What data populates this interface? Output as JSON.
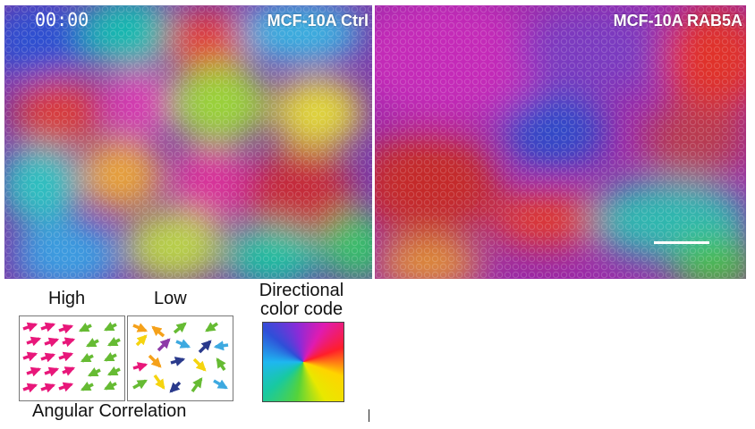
{
  "timestamp": "00:00",
  "panels": {
    "left": {
      "label": "MCF-10A Ctrl"
    },
    "right": {
      "label": "MCF-10A RAB5A"
    }
  },
  "legend": {
    "high": "High",
    "low": "Low",
    "directional": "Directional color code",
    "angular": "Angular Correlation"
  },
  "colors": {
    "pink": "#e8177a",
    "green": "#66bb33",
    "orange": "#f5a11a",
    "yellow": "#f5d40f",
    "blue": "#3da9e0",
    "navy": "#2a3a8c",
    "purple": "#8e3aa8",
    "teal": "#1aa89a"
  }
}
